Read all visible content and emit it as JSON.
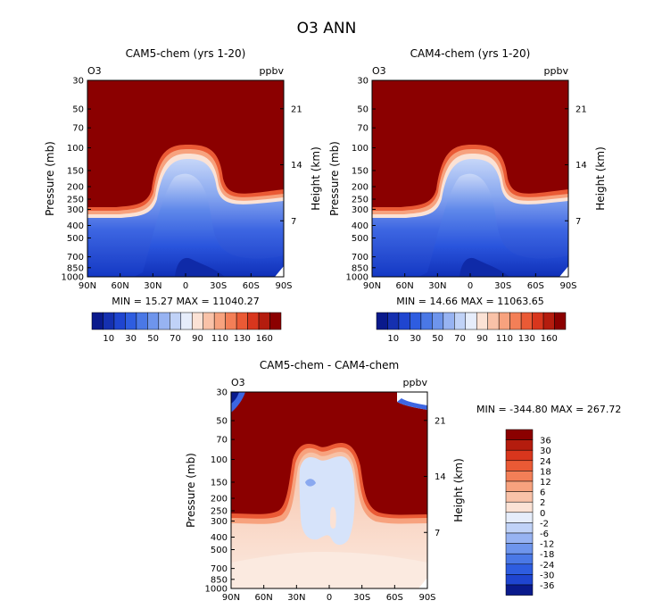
{
  "page_title": "O3 ANN",
  "chart_data": [
    {
      "type": "heatmap",
      "title": "CAM5-chem (yrs 1-20)",
      "corner_left": "O3",
      "corner_right": "ppbv",
      "ylabel": "Pressure (mb)",
      "ylabel_right": "Height (km)",
      "pressure_ticks": [
        "30",
        "50",
        "70",
        "100",
        "150",
        "200",
        "250",
        "300",
        "400",
        "500",
        "700",
        "850",
        "1000"
      ],
      "height_ticks": [
        "21",
        "14",
        "7"
      ],
      "lat_ticks": [
        "90N",
        "60N",
        "30N",
        "0",
        "30S",
        "60S",
        "90S"
      ],
      "stats": "MIN =   15.27   MAX = 11040.27",
      "min": 15.27,
      "max": 11040.27
    },
    {
      "type": "heatmap",
      "title": "CAM4-chem (yrs 1-20)",
      "corner_left": "O3",
      "corner_right": "ppbv",
      "ylabel": "Pressure (mb)",
      "ylabel_right": "Height (km)",
      "pressure_ticks": [
        "30",
        "50",
        "70",
        "100",
        "150",
        "200",
        "250",
        "300",
        "400",
        "500",
        "700",
        "850",
        "1000"
      ],
      "height_ticks": [
        "21",
        "14",
        "7"
      ],
      "lat_ticks": [
        "90N",
        "60N",
        "30N",
        "0",
        "30S",
        "60S",
        "90S"
      ],
      "stats": "MIN =   14.66   MAX = 11063.65",
      "min": 14.66,
      "max": 11063.65
    },
    {
      "type": "heatmap",
      "title": "CAM5-chem - CAM4-chem",
      "corner_left": "O3",
      "corner_right": "ppbv",
      "ylabel": "Pressure (mb)",
      "ylabel_right": "Height (km)",
      "pressure_ticks": [
        "30",
        "50",
        "70",
        "100",
        "150",
        "200",
        "250",
        "300",
        "400",
        "500",
        "700",
        "850",
        "1000"
      ],
      "height_ticks": [
        "21",
        "14",
        "7"
      ],
      "lat_ticks": [
        "90N",
        "60N",
        "30N",
        "0",
        "30S",
        "60S",
        "90S"
      ],
      "stats": "MIN = -344.80   MAX = 267.72",
      "min": -344.8,
      "max": 267.72
    }
  ],
  "colorbar_top": {
    "labels": [
      "10",
      "30",
      "50",
      "70",
      "90",
      "110",
      "130",
      "160"
    ],
    "colors": [
      "#0a1a8c",
      "#1530b0",
      "#1f45d0",
      "#2e5de0",
      "#4a78e6",
      "#6e95ec",
      "#97b3f2",
      "#c0d2f7",
      "#e6edfb",
      "#fbe2d5",
      "#f9c2a8",
      "#f7a27e",
      "#f37f57",
      "#ea5a35",
      "#d8361d",
      "#b41c0e",
      "#8b0000"
    ]
  },
  "colorbar_diff": {
    "labels": [
      "36",
      "30",
      "24",
      "18",
      "12",
      "6",
      "2",
      "0",
      "-2",
      "-6",
      "-12",
      "-18",
      "-24",
      "-30",
      "-36"
    ],
    "colors": [
      "#8b0000",
      "#b41c0e",
      "#d8361d",
      "#ea5a35",
      "#f37f57",
      "#f7a27e",
      "#f9c2a8",
      "#fbe2d5",
      "#e6edfb",
      "#c0d2f7",
      "#97b3f2",
      "#6e95ec",
      "#4a78e6",
      "#2e5de0",
      "#1f45d0",
      "#0a1a8c"
    ]
  }
}
